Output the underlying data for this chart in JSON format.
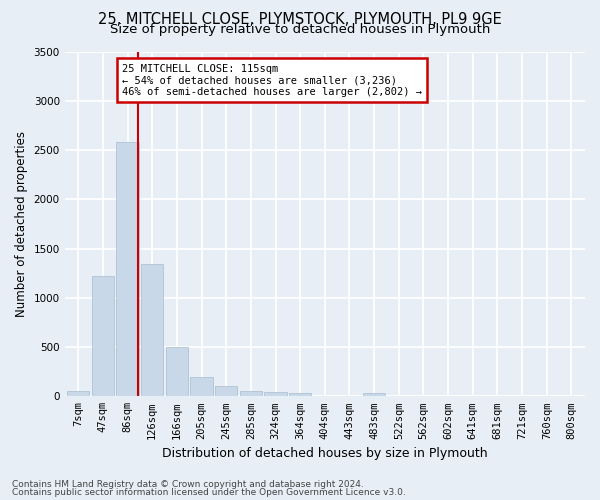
{
  "title1": "25, MITCHELL CLOSE, PLYMSTOCK, PLYMOUTH, PL9 9GE",
  "title2": "Size of property relative to detached houses in Plymouth",
  "xlabel": "Distribution of detached houses by size in Plymouth",
  "ylabel": "Number of detached properties",
  "bar_color": "#c8d8e8",
  "bar_edge_color": "#a8bece",
  "background_color": "#e8eef5",
  "grid_color": "#ffffff",
  "bin_labels": [
    "7sqm",
    "47sqm",
    "86sqm",
    "126sqm",
    "166sqm",
    "205sqm",
    "245sqm",
    "285sqm",
    "324sqm",
    "364sqm",
    "404sqm",
    "443sqm",
    "483sqm",
    "522sqm",
    "562sqm",
    "602sqm",
    "641sqm",
    "681sqm",
    "721sqm",
    "760sqm",
    "800sqm"
  ],
  "bar_heights": [
    50,
    1225,
    2580,
    1340,
    500,
    195,
    105,
    50,
    40,
    35,
    0,
    0,
    30,
    0,
    0,
    0,
    0,
    0,
    0,
    0,
    0
  ],
  "ylim": [
    0,
    3500
  ],
  "yticks": [
    0,
    500,
    1000,
    1500,
    2000,
    2500,
    3000,
    3500
  ],
  "vline_color": "#cc0000",
  "vline_position": 2.425,
  "annotation_title": "25 MITCHELL CLOSE: 115sqm",
  "annotation_line1": "← 54% of detached houses are smaller (3,236)",
  "annotation_line2": "46% of semi-detached houses are larger (2,802) →",
  "footer1": "Contains HM Land Registry data © Crown copyright and database right 2024.",
  "footer2": "Contains public sector information licensed under the Open Government Licence v3.0.",
  "title1_fontsize": 10.5,
  "title2_fontsize": 9.5,
  "xlabel_fontsize": 9,
  "ylabel_fontsize": 8.5,
  "tick_fontsize": 7.5,
  "footer_fontsize": 6.5,
  "annotation_fontsize": 7.5
}
